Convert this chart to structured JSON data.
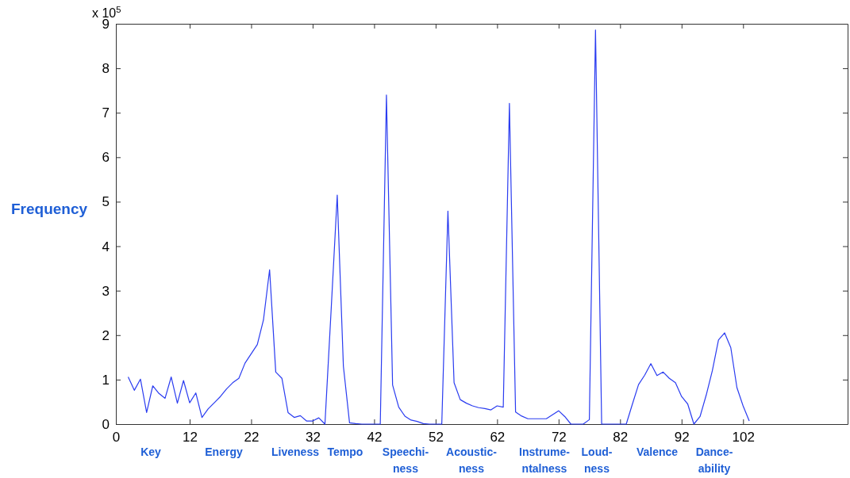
{
  "chart_data": {
    "type": "line",
    "ylabel": "Frequency",
    "x": [
      2,
      3,
      4,
      5,
      6,
      7,
      8,
      9,
      10,
      11,
      12,
      13,
      14,
      15,
      16,
      17,
      18,
      19,
      20,
      21,
      22,
      23,
      24,
      25,
      26,
      27,
      28,
      29,
      30,
      31,
      32,
      33,
      34,
      35,
      36,
      37,
      38,
      39,
      40,
      41,
      42,
      43,
      44,
      45,
      46,
      47,
      48,
      49,
      50,
      51,
      52,
      53,
      54,
      55,
      56,
      57,
      58,
      59,
      60,
      61,
      62,
      63,
      64,
      65,
      66,
      67,
      68,
      69,
      70,
      71,
      72,
      73,
      74,
      75,
      76,
      77,
      78,
      79,
      80,
      81,
      82,
      83,
      84,
      85,
      86,
      87,
      88,
      89,
      90,
      91,
      92,
      93,
      94,
      95,
      96,
      97,
      98,
      99,
      100,
      101,
      102,
      103
    ],
    "series": [
      {
        "color": "#2a3cf0",
        "values": [
          1.06,
          0.76,
          1.01,
          0.26,
          0.86,
          0.69,
          0.58,
          1.06,
          0.47,
          0.98,
          0.48,
          0.7,
          0.15,
          0.34,
          0.48,
          0.62,
          0.79,
          0.93,
          1.03,
          1.37,
          1.58,
          1.79,
          2.34,
          3.47,
          1.17,
          1.03,
          0.26,
          0.15,
          0.19,
          0.07,
          0.07,
          0.14,
          0,
          2.55,
          5.15,
          1.3,
          0.03,
          0.01,
          0,
          0,
          0,
          0,
          7.4,
          0.88,
          0.38,
          0.18,
          0.09,
          0.06,
          0.01,
          0,
          0,
          0,
          4.79,
          0.93,
          0.55,
          0.47,
          0.41,
          0.37,
          0.35,
          0.32,
          0.41,
          0.38,
          7.21,
          0.27,
          0.18,
          0.12,
          0.12,
          0.12,
          0.12,
          0.21,
          0.3,
          0.17,
          0,
          0,
          0,
          0.1,
          8.86,
          0,
          0,
          0,
          0,
          0,
          0.45,
          0.89,
          1.1,
          1.36,
          1.09,
          1.17,
          1.03,
          0.93,
          0.62,
          0.45,
          0,
          0.17,
          0.65,
          1.2,
          1.89,
          2.05,
          1.72,
          0.82,
          0.41,
          0.07
        ]
      }
    ],
    "xlim": [
      0,
      119
    ],
    "xticks": [
      0,
      12,
      22,
      32,
      42,
      52,
      62,
      72,
      82,
      92,
      102
    ],
    "ylim": [
      0,
      9
    ],
    "yticks": [
      0,
      1,
      2,
      3,
      4,
      5,
      6,
      7,
      8,
      9
    ],
    "annotations": [
      "x 10$^{5}$",
      "Key",
      "Energy",
      "Liveness",
      "Tempo",
      "Speechi-\nness",
      "Acoustic-\nness",
      "Instrume-\nntalness",
      "Loud-\nness",
      "Valence",
      "Dance-\nability"
    ],
    "grid": false
  }
}
